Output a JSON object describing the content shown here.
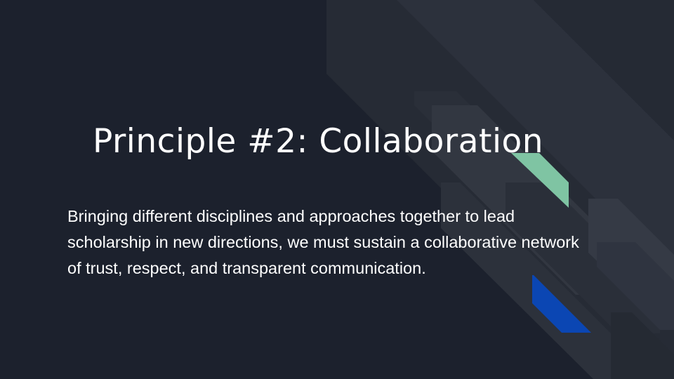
{
  "slide": {
    "title": "Principle #2: Collaboration",
    "body": "Bringing different disciplines and approaches together to lead scholarship in new directions, we must sustain a collaborative network of trust, respect, and transparent communication."
  },
  "colors": {
    "background": "#1c212d",
    "stripe_light": "#2a303a",
    "stripe_mid": "#333843",
    "stripe_dark": "#252a34",
    "accent_green": "#7fc4a3",
    "accent_blue": "#0b46b3",
    "text": "#ffffff"
  }
}
